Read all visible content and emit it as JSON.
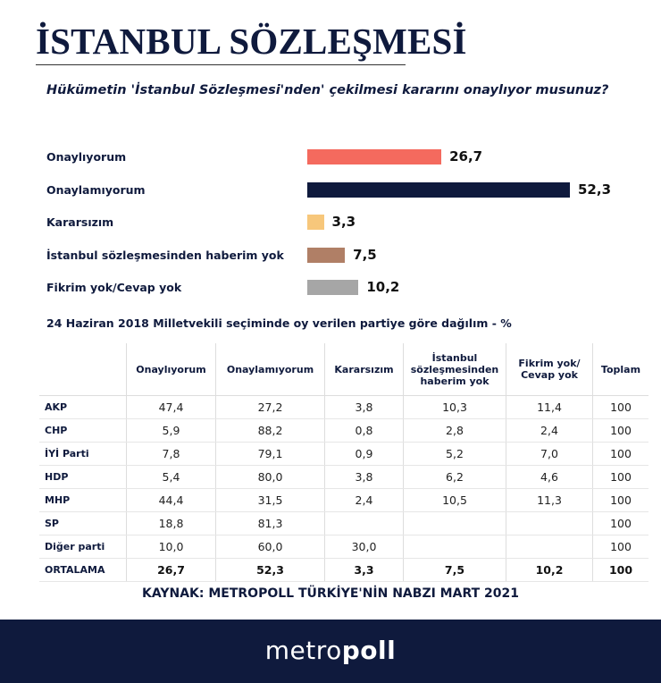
{
  "title": "İSTANBUL SÖZLEŞMESİ",
  "question": "Hükümetin 'İstanbul Sözleşmesi'nden' çekilmesi kararını onaylıyor musunuz?",
  "chart_data": {
    "type": "bar",
    "orientation": "horizontal",
    "categories": [
      "Onaylıyorum",
      "Onaylamıyorum",
      "Kararsızım",
      "İstanbul sözleşmesinden haberim yok",
      "Fikrim yok/Cevap yok"
    ],
    "values": [
      26.7,
      52.3,
      3.3,
      7.5,
      10.2
    ],
    "value_labels": [
      "26,7",
      "52,3",
      "3,3",
      "7,5",
      "10,2"
    ],
    "colors": [
      "#f46a5e",
      "#0f1a3d",
      "#f7c77b",
      "#b07f66",
      "#a6a6a6"
    ],
    "xlim": [
      0,
      52.3
    ],
    "grid": false
  },
  "table": {
    "subtitle": "24 Haziran 2018 Milletvekili seçiminde oy verilen partiye göre dağılım - %",
    "headers": [
      "",
      "Onaylıyorum",
      "Onaylamıyorum",
      "Kararsızım",
      "İstanbul sözleşmesinden haberim yok",
      "Fikrim yok/ Cevap yok",
      "Toplam"
    ],
    "rows": [
      [
        "AKP",
        "47,4",
        "27,2",
        "3,8",
        "10,3",
        "11,4",
        "100"
      ],
      [
        "CHP",
        "5,9",
        "88,2",
        "0,8",
        "2,8",
        "2,4",
        "100"
      ],
      [
        "İYİ Parti",
        "7,8",
        "79,1",
        "0,9",
        "5,2",
        "7,0",
        "100"
      ],
      [
        "HDP",
        "5,4",
        "80,0",
        "3,8",
        "6,2",
        "4,6",
        "100"
      ],
      [
        "MHP",
        "44,4",
        "31,5",
        "2,4",
        "10,5",
        "11,3",
        "100"
      ],
      [
        "SP",
        "18,8",
        "81,3",
        "",
        "",
        "",
        "100"
      ],
      [
        "Diğer parti",
        "10,0",
        "60,0",
        "30,0",
        "",
        "",
        "100"
      ],
      [
        "ORTALAMA",
        "26,7",
        "52,3",
        "3,3",
        "7,5",
        "10,2",
        "100"
      ]
    ]
  },
  "source": "KAYNAK: METROPOLL TÜRKİYE'NİN NABZI MART 2021",
  "logo": {
    "light": "metro",
    "bold": "poll"
  }
}
